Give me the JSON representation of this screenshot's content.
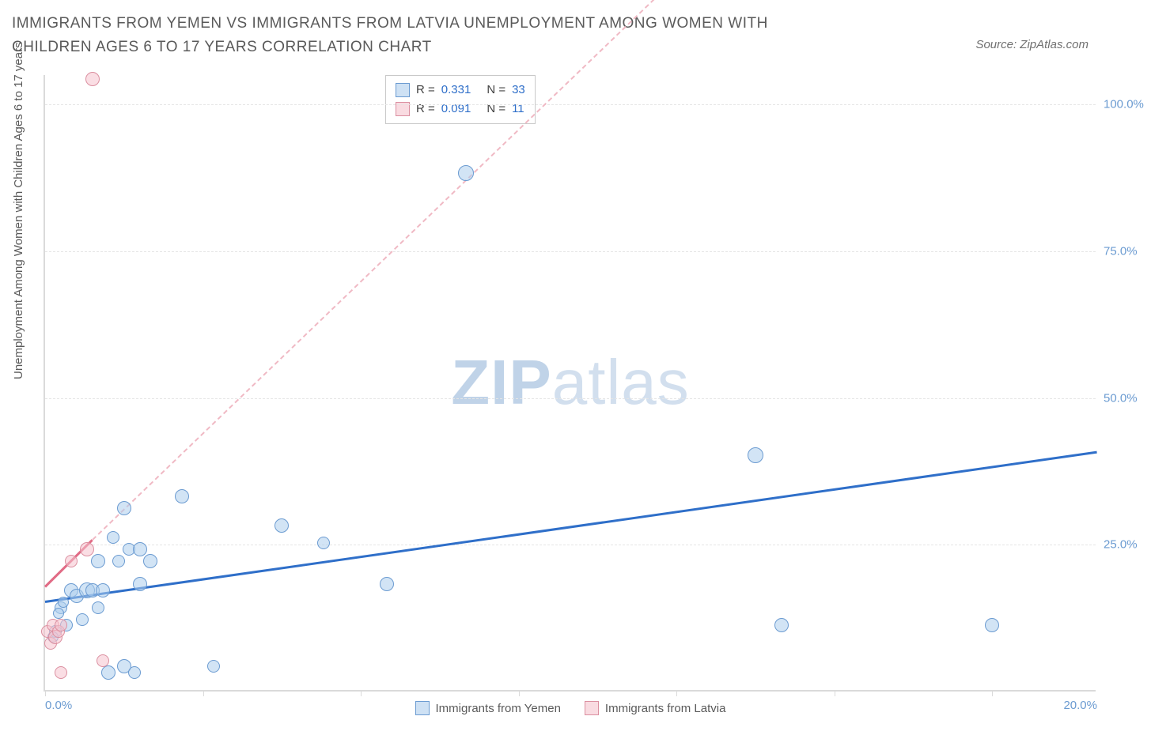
{
  "title": "IMMIGRANTS FROM YEMEN VS IMMIGRANTS FROM LATVIA UNEMPLOYMENT AMONG WOMEN WITH CHILDREN AGES 6 TO 17 YEARS CORRELATION CHART",
  "source": "Source: ZipAtlas.com",
  "watermark_bold": "ZIP",
  "watermark_light": "atlas",
  "chart": {
    "type": "scatter",
    "ylabel": "Unemployment Among Women with Children Ages 6 to 17 years",
    "xlim": [
      0,
      20
    ],
    "ylim": [
      0,
      105
    ],
    "yticks": [
      25,
      50,
      75,
      100
    ],
    "ytick_labels": [
      "25.0%",
      "50.0%",
      "75.0%",
      "100.0%"
    ],
    "xtick_positions": [
      0,
      3,
      6,
      9,
      12,
      15,
      18
    ],
    "xtick_labels": {
      "0": "0.0%",
      "20": "20.0%"
    },
    "marker_radius_range": [
      7,
      13
    ],
    "colors": {
      "blue_fill": "#adcded",
      "blue_stroke": "#6b9bd1",
      "pink_fill": "#f5c3cd",
      "pink_stroke": "#db8fa0",
      "trend_blue": "#2f6fc9",
      "trend_pink": "#e16b85",
      "trend_dash_pink": "#f0b9c4",
      "grid": "#e5e5e5",
      "axis": "#dadada",
      "text": "#5a5a5a",
      "tick_text": "#6b9bd1"
    },
    "series": [
      {
        "name": "Immigrants from Yemen",
        "color": "blue",
        "R": "0.331",
        "N": "33",
        "trend": {
          "x1": 0,
          "y1": 15.5,
          "x2": 20,
          "y2": 41,
          "style": "solid"
        },
        "points": [
          {
            "x": 0.2,
            "y": 10,
            "r": 8
          },
          {
            "x": 0.3,
            "y": 14,
            "r": 8
          },
          {
            "x": 0.4,
            "y": 11,
            "r": 8
          },
          {
            "x": 0.5,
            "y": 17,
            "r": 9
          },
          {
            "x": 0.6,
            "y": 16,
            "r": 9
          },
          {
            "x": 0.7,
            "y": 12,
            "r": 8
          },
          {
            "x": 0.8,
            "y": 17,
            "r": 10
          },
          {
            "x": 0.9,
            "y": 17,
            "r": 9
          },
          {
            "x": 1.0,
            "y": 22,
            "r": 9
          },
          {
            "x": 1.1,
            "y": 17,
            "r": 9
          },
          {
            "x": 1.2,
            "y": 3,
            "r": 9
          },
          {
            "x": 1.3,
            "y": 26,
            "r": 8
          },
          {
            "x": 1.4,
            "y": 22,
            "r": 8
          },
          {
            "x": 1.5,
            "y": 31,
            "r": 9
          },
          {
            "x": 1.5,
            "y": 4,
            "r": 9
          },
          {
            "x": 1.6,
            "y": 24,
            "r": 8
          },
          {
            "x": 1.7,
            "y": 3,
            "r": 8
          },
          {
            "x": 1.8,
            "y": 24,
            "r": 9
          },
          {
            "x": 1.8,
            "y": 18,
            "r": 9
          },
          {
            "x": 2.0,
            "y": 22,
            "r": 9
          },
          {
            "x": 2.6,
            "y": 33,
            "r": 9
          },
          {
            "x": 3.2,
            "y": 4,
            "r": 8
          },
          {
            "x": 4.5,
            "y": 28,
            "r": 9
          },
          {
            "x": 5.3,
            "y": 25,
            "r": 8
          },
          {
            "x": 6.5,
            "y": 18,
            "r": 9
          },
          {
            "x": 8.0,
            "y": 88,
            "r": 10
          },
          {
            "x": 13.5,
            "y": 40,
            "r": 10
          },
          {
            "x": 14.0,
            "y": 11,
            "r": 9
          },
          {
            "x": 18.0,
            "y": 11,
            "r": 9
          },
          {
            "x": 0.15,
            "y": 9,
            "r": 7
          },
          {
            "x": 0.25,
            "y": 13,
            "r": 7
          },
          {
            "x": 0.35,
            "y": 15,
            "r": 7
          },
          {
            "x": 1.0,
            "y": 14,
            "r": 8
          }
        ]
      },
      {
        "name": "Immigrants from Latvia",
        "color": "pink",
        "R": "0.091",
        "N": "11",
        "trend_solid": {
          "x1": 0,
          "y1": 18,
          "x2": 0.9,
          "y2": 26,
          "style": "solid"
        },
        "trend_dash": {
          "x1": 0.9,
          "y1": 26,
          "x2": 11.8,
          "y2": 120,
          "style": "dash"
        },
        "points": [
          {
            "x": 0.05,
            "y": 10,
            "r": 8
          },
          {
            "x": 0.1,
            "y": 8,
            "r": 8
          },
          {
            "x": 0.15,
            "y": 11,
            "r": 8
          },
          {
            "x": 0.2,
            "y": 9,
            "r": 9
          },
          {
            "x": 0.25,
            "y": 10,
            "r": 8
          },
          {
            "x": 0.3,
            "y": 11,
            "r": 8
          },
          {
            "x": 0.3,
            "y": 3,
            "r": 8
          },
          {
            "x": 0.5,
            "y": 22,
            "r": 8
          },
          {
            "x": 0.8,
            "y": 24,
            "r": 9
          },
          {
            "x": 0.9,
            "y": 104,
            "r": 9
          },
          {
            "x": 1.1,
            "y": 5,
            "r": 8
          }
        ]
      }
    ],
    "legend_bottom": [
      {
        "swatch": "blue",
        "label": "Immigrants from Yemen"
      },
      {
        "swatch": "pink",
        "label": "Immigrants from Latvia"
      }
    ]
  }
}
